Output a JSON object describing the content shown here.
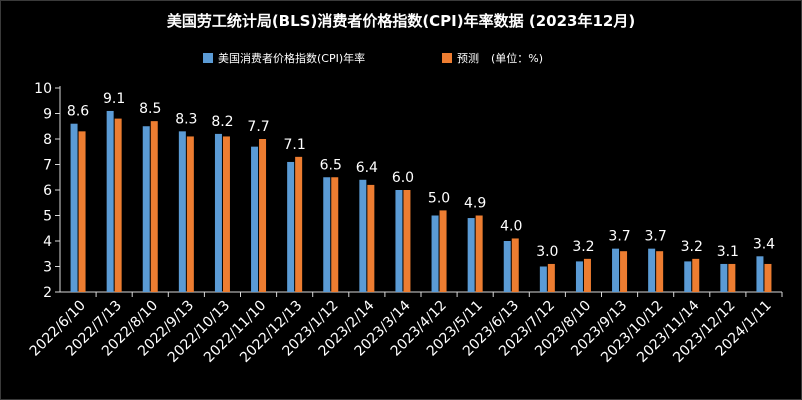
{
  "chart_data": {
    "type": "bar",
    "title": "美国劳工统计局(BLS)消费者价格指数(CPI)年率数据 (2023年12月)",
    "categories": [
      "2022/6/10",
      "2022/7/13",
      "2022/8/10",
      "2022/9/13",
      "2022/10/13",
      "2022/11/10",
      "2022/12/13",
      "2023/1/12",
      "2023/2/14",
      "2023/3/14",
      "2023/4/12",
      "2023/5/11",
      "2023/6/13",
      "2023/7/12",
      "2023/8/10",
      "2023/9/13",
      "2023/10/12",
      "2023/11/14",
      "2023/12/12",
      "2024/1/11"
    ],
    "series": [
      {
        "name": "美国消费者价格指数(CPI)年率",
        "color": "#5b9bd5",
        "values": [
          8.6,
          9.1,
          8.5,
          8.3,
          8.2,
          7.7,
          7.1,
          6.5,
          6.4,
          6.0,
          5.0,
          4.9,
          4.0,
          3.0,
          3.2,
          3.7,
          3.7,
          3.2,
          3.1,
          3.4
        ],
        "value_labels": [
          "8.6",
          "9.1",
          "8.5",
          "8.3",
          "8.2",
          "7.7",
          "7.1",
          "6.5",
          "6.4",
          "6.0",
          "5.0",
          "4.9",
          "4.0",
          "3.0",
          "3.2",
          "3.7",
          "3.7",
          "3.2",
          "3.1",
          "3.4"
        ]
      },
      {
        "name": "预测",
        "color": "#ed7d31",
        "values": [
          8.3,
          8.8,
          8.7,
          8.1,
          8.1,
          8.0,
          7.3,
          6.5,
          6.2,
          6.0,
          5.2,
          5.0,
          4.1,
          3.1,
          3.3,
          3.6,
          3.6,
          3.3,
          3.1,
          3.1
        ]
      }
    ],
    "legend_unit": "(单位：%)",
    "ylim": [
      2,
      10
    ],
    "yticks": [
      "2",
      "3",
      "4",
      "5",
      "6",
      "7",
      "8",
      "9",
      "10"
    ],
    "xlabel": "",
    "ylabel": "",
    "legend_position": "top-center"
  }
}
